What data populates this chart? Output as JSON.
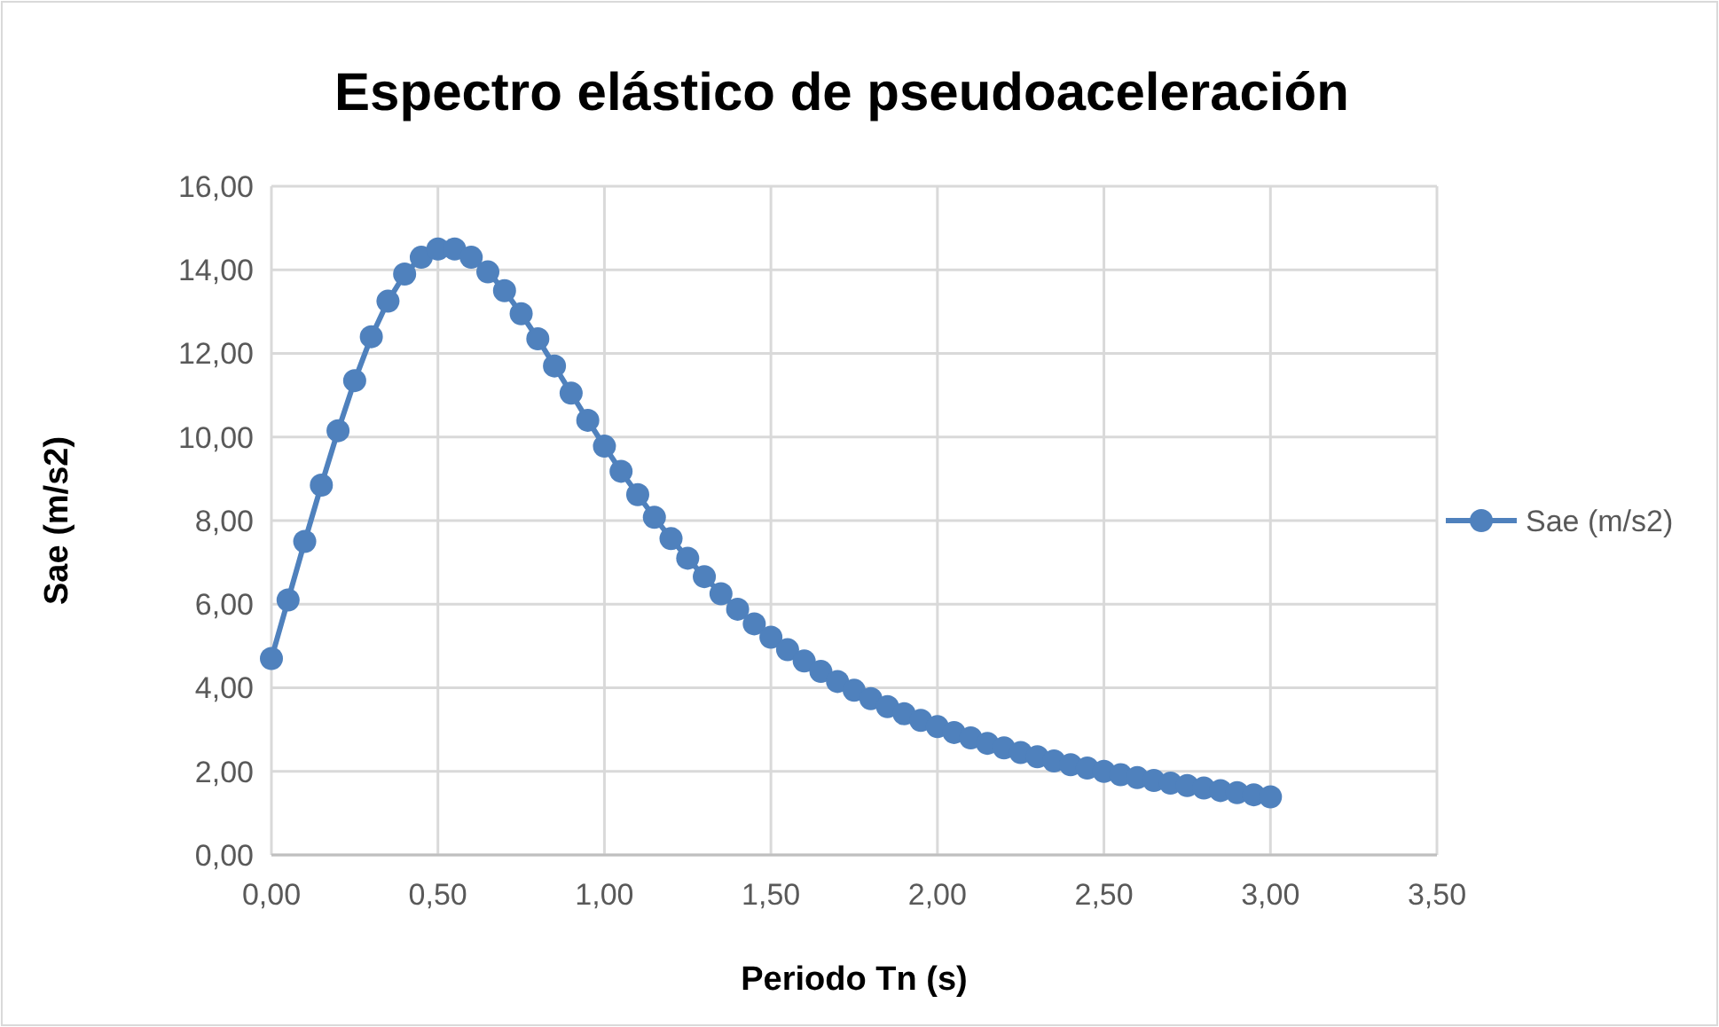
{
  "chart_data": {
    "type": "line",
    "title": "Espectro elástico de pseudoaceleración",
    "xlabel": "Periodo Tn (s)",
    "ylabel": "Sae (m/s2)",
    "x": [
      0,
      0.05,
      0.1,
      0.15,
      0.2,
      0.25,
      0.3,
      0.35,
      0.4,
      0.45,
      0.5,
      0.55,
      0.6,
      0.65,
      0.7,
      0.75,
      0.8,
      0.85,
      0.9,
      0.95,
      1,
      1.05,
      1.1,
      1.15,
      1.2,
      1.25,
      1.3,
      1.35,
      1.4,
      1.45,
      1.5,
      1.55,
      1.6,
      1.65,
      1.7,
      1.75,
      1.8,
      1.85,
      1.9,
      1.95,
      2,
      2.05,
      2.1,
      2.15,
      2.2,
      2.25,
      2.3,
      2.35,
      2.4,
      2.45,
      2.5,
      2.55,
      2.6,
      2.65,
      2.7,
      2.75,
      2.8,
      2.85,
      2.9,
      2.95,
      3
    ],
    "series": [
      {
        "name": "Sae (m/s2)",
        "color": "#4f81bd",
        "values": [
          4.7,
          6.1,
          7.5,
          8.85,
          10.15,
          11.35,
          12.4,
          13.25,
          13.9,
          14.3,
          14.5,
          14.5,
          14.3,
          13.95,
          13.5,
          12.95,
          12.35,
          11.7,
          11.05,
          10.4,
          9.78,
          9.18,
          8.62,
          8.08,
          7.57,
          7.1,
          6.66,
          6.25,
          5.88,
          5.53,
          5.21,
          4.91,
          4.64,
          4.39,
          4.15,
          3.94,
          3.74,
          3.55,
          3.38,
          3.22,
          3.07,
          2.93,
          2.8,
          2.67,
          2.56,
          2.45,
          2.35,
          2.25,
          2.16,
          2.08,
          2,
          1.92,
          1.85,
          1.78,
          1.72,
          1.66,
          1.6,
          1.54,
          1.49,
          1.44,
          1.39
        ]
      }
    ],
    "xlim": [
      0,
      3.5
    ],
    "ylim": [
      0,
      16
    ],
    "xticks": [
      {
        "value": 0,
        "label": "0,00"
      },
      {
        "value": 0.5,
        "label": "0,50"
      },
      {
        "value": 1,
        "label": "1,00"
      },
      {
        "value": 1.5,
        "label": "1,50"
      },
      {
        "value": 2,
        "label": "2,00"
      },
      {
        "value": 2.5,
        "label": "2,50"
      },
      {
        "value": 3,
        "label": "3,00"
      },
      {
        "value": 3.5,
        "label": "3,50"
      }
    ],
    "yticks": [
      {
        "value": 0,
        "label": "0,00"
      },
      {
        "value": 2,
        "label": "2,00"
      },
      {
        "value": 4,
        "label": "4,00"
      },
      {
        "value": 6,
        "label": "6,00"
      },
      {
        "value": 8,
        "label": "8,00"
      },
      {
        "value": 10,
        "label": "10,00"
      },
      {
        "value": 12,
        "label": "12,00"
      },
      {
        "value": 14,
        "label": "14,00"
      },
      {
        "value": 16,
        "label": "16,00"
      }
    ],
    "grid": true,
    "legend": "right",
    "marker": "circle",
    "line_style": "solid"
  }
}
